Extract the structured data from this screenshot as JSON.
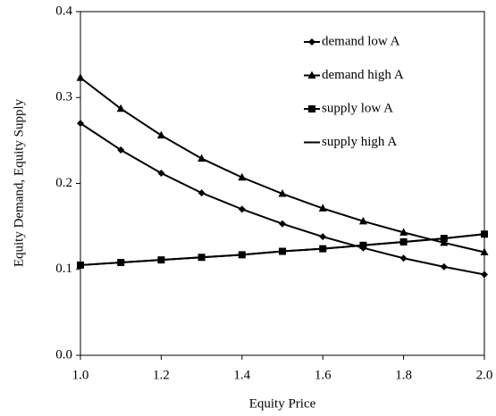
{
  "chart_data": {
    "type": "line",
    "x_label": "Equity Price",
    "y_label": "Equity Demand, Equity Supply",
    "x": [
      1.0,
      1.1,
      1.2,
      1.3,
      1.4,
      1.5,
      1.6,
      1.7,
      1.8,
      1.9,
      2.0
    ],
    "series": [
      {
        "name": "demand low A",
        "color": "#000000",
        "marker": "diamond",
        "values": [
          0.27,
          0.239,
          0.212,
          0.189,
          0.17,
          0.153,
          0.138,
          0.125,
          0.113,
          0.103,
          0.094
        ]
      },
      {
        "name": "demand high A",
        "color": "#000000",
        "marker": "triangle",
        "values": [
          0.323,
          0.287,
          0.256,
          0.229,
          0.207,
          0.188,
          0.171,
          0.156,
          0.143,
          0.131,
          0.12
        ]
      },
      {
        "name": "supply low A",
        "color": "#000000",
        "marker": "square",
        "values": [
          0.105,
          0.108,
          0.111,
          0.114,
          0.117,
          0.121,
          0.124,
          0.128,
          0.132,
          0.136,
          0.141
        ]
      },
      {
        "name": "supply high A",
        "color": "#000000",
        "marker": "none",
        "values": [
          0.105,
          0.108,
          0.111,
          0.114,
          0.117,
          0.121,
          0.124,
          0.128,
          0.132,
          0.136,
          0.141
        ]
      }
    ],
    "xlim": [
      1.0,
      2.0
    ],
    "xticks": [
      {
        "value": 1.0,
        "label": "1.0"
      },
      1.2,
      1.4,
      1.6,
      1.8,
      {
        "value": 2.0,
        "label": "2.0"
      }
    ],
    "ylim": [
      0,
      0.4
    ],
    "yticks": [
      {
        "value": 0,
        "label": "0.0"
      },
      0.1,
      0.2,
      0.3,
      0.4
    ],
    "grid": false,
    "legend": "upper right"
  }
}
